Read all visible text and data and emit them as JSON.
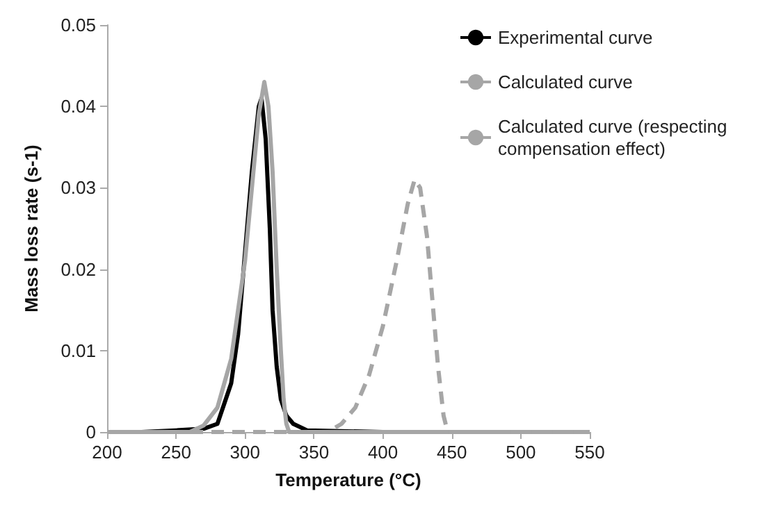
{
  "chart_data": {
    "type": "line",
    "xlabel": "Temperature (°C)",
    "ylabel": "Mass loss rate (s-1)",
    "xlim": [
      200,
      550
    ],
    "xticks": [
      200,
      250,
      300,
      350,
      400,
      450,
      500,
      550
    ],
    "ylim": [
      0,
      0.05
    ],
    "yticks": [
      0,
      0.01,
      0.02,
      0.03,
      0.04,
      0.05
    ],
    "grid": false,
    "legend": "top right",
    "marker": "none",
    "series": [
      {
        "name": "Experimental curve",
        "color": "#000000",
        "line_style": "solid",
        "x": [
          225,
          250,
          270,
          280,
          290,
          295,
          300,
          305,
          310,
          312,
          315,
          318,
          320,
          323,
          326,
          330,
          335,
          345,
          400,
          550
        ],
        "values": [
          0,
          0.0002,
          0.0004,
          0.001,
          0.006,
          0.012,
          0.022,
          0.032,
          0.04,
          0.041,
          0.036,
          0.025,
          0.015,
          0.008,
          0.004,
          0.002,
          0.001,
          0.0002,
          0,
          0
        ]
      },
      {
        "name": "Calculated curve",
        "color": "#a6a6a6",
        "line_style": "solid",
        "x": [
          200,
          260,
          270,
          280,
          290,
          300,
          305,
          310,
          314,
          317,
          320,
          323,
          326,
          328,
          330,
          332,
          550
        ],
        "values": [
          0,
          0,
          0.0008,
          0.003,
          0.009,
          0.021,
          0.03,
          0.039,
          0.043,
          0.04,
          0.032,
          0.02,
          0.01,
          0.004,
          0.001,
          0,
          0
        ]
      },
      {
        "name": "Calculated curve (respecting compensation effect)",
        "color": "#a6a6a6",
        "line_style": "dashed",
        "x": [
          200,
          360,
          370,
          380,
          390,
          400,
          410,
          418,
          423,
          427,
          432,
          436,
          440,
          444,
          447,
          550
        ],
        "values": [
          0,
          0,
          0.001,
          0.003,
          0.007,
          0.013,
          0.021,
          0.028,
          0.031,
          0.03,
          0.024,
          0.016,
          0.008,
          0.002,
          0,
          0
        ]
      }
    ]
  }
}
